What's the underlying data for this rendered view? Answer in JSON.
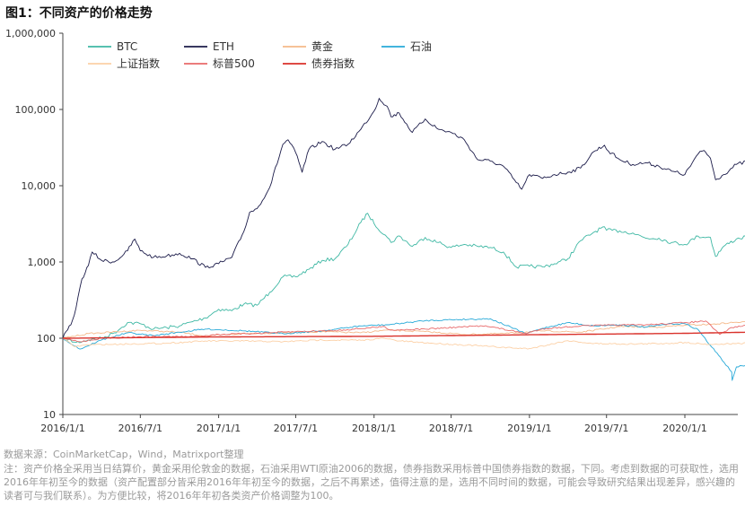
{
  "title": "图1：不同资产的价格走势",
  "source": "数据来源：CoinMarketCap，Wind，Matrixport整理",
  "note": "注：资产价格全采用当日结算价，黄金采用伦敦金的数据，石油采用WTI原油2006的数据，债券指数采用标普中国债券指数的数据，下同。考虑到数据的可获取性，选用2016年年初至今的数据（资产配置部分皆采用2016年年初至今的数据，之后不再累述，值得注意的是，选用不同时间的数据，可能会导致研究结果出现差异，感兴趣的读者可与我们联系）。为方便比较，将2016年年初各类资产价格调整为100。",
  "chart_data": {
    "type": "line",
    "y_scale": "log",
    "ylim": [
      10,
      1000000
    ],
    "ytick_labels": [
      "10",
      "100",
      "1,000",
      "10,000",
      "100,000",
      "1,000,000"
    ],
    "ytick_values": [
      10,
      100,
      1000,
      10000,
      100000,
      1000000
    ],
    "x_start": "2016/1/1",
    "x_end": "2020/6/1",
    "xtick_labels": [
      "2016/1/1",
      "2016/7/1",
      "2017/1/1",
      "2017/7/1",
      "2018/1/1",
      "2018/7/1",
      "2019/1/1",
      "2019/7/1",
      "2020/1/1"
    ],
    "grid": false,
    "legend_position": "top-left",
    "series": [
      {
        "name": "BTC",
        "color": "#3fb8a4",
        "width": 0.9,
        "points": [
          [
            "2016/1/1",
            100
          ],
          [
            "2016/2/1",
            88
          ],
          [
            "2016/3/1",
            95
          ],
          [
            "2016/4/1",
            100
          ],
          [
            "2016/5/1",
            118
          ],
          [
            "2016/6/1",
            160
          ],
          [
            "2016/7/1",
            155
          ],
          [
            "2016/8/1",
            132
          ],
          [
            "2016/9/1",
            138
          ],
          [
            "2016/10/1",
            145
          ],
          [
            "2016/11/1",
            165
          ],
          [
            "2016/12/1",
            185
          ],
          [
            "2017/1/1",
            240
          ],
          [
            "2017/2/1",
            230
          ],
          [
            "2017/3/1",
            280
          ],
          [
            "2017/4/1",
            270
          ],
          [
            "2017/5/1",
            400
          ],
          [
            "2017/6/1",
            640
          ],
          [
            "2017/7/1",
            640
          ],
          [
            "2017/8/1",
            800
          ],
          [
            "2017/9/1",
            1050
          ],
          [
            "2017/10/1",
            1100
          ],
          [
            "2017/11/1",
            1700
          ],
          [
            "2017/12/1",
            3300
          ],
          [
            "2017/12/17",
            4350
          ],
          [
            "2018/1/1",
            3200
          ],
          [
            "2018/2/1",
            2100
          ],
          [
            "2018/2/10",
            1800
          ],
          [
            "2018/3/1",
            2200
          ],
          [
            "2018/4/1",
            1600
          ],
          [
            "2018/5/1",
            2100
          ],
          [
            "2018/6/1",
            1800
          ],
          [
            "2018/7/1",
            1550
          ],
          [
            "2018/8/1",
            1700
          ],
          [
            "2018/9/1",
            1600
          ],
          [
            "2018/10/1",
            1550
          ],
          [
            "2018/11/1",
            1350
          ],
          [
            "2018/12/1",
            860
          ],
          [
            "2019/1/1",
            880
          ],
          [
            "2019/2/1",
            860
          ],
          [
            "2019/3/1",
            950
          ],
          [
            "2019/4/1",
            1100
          ],
          [
            "2019/5/1",
            1900
          ],
          [
            "2019/6/1",
            2450
          ],
          [
            "2019/6/26",
            2900
          ],
          [
            "2019/7/1",
            2600
          ],
          [
            "2019/8/1",
            2550
          ],
          [
            "2019/9/1",
            2400
          ],
          [
            "2019/10/1",
            2050
          ],
          [
            "2019/11/1",
            2050
          ],
          [
            "2019/12/1",
            1800
          ],
          [
            "2020/1/1",
            1700
          ],
          [
            "2020/2/1",
            2180
          ],
          [
            "2020/3/1",
            2100
          ],
          [
            "2020/3/13",
            1180
          ],
          [
            "2020/4/1",
            1600
          ],
          [
            "2020/5/1",
            2000
          ],
          [
            "2020/6/1",
            2200
          ]
        ]
      },
      {
        "name": "ETH",
        "color": "#1c1c4a",
        "width": 0.9,
        "points": [
          [
            "2016/1/1",
            100
          ],
          [
            "2016/1/20",
            150
          ],
          [
            "2016/2/1",
            250
          ],
          [
            "2016/2/15",
            600
          ],
          [
            "2016/3/1",
            900
          ],
          [
            "2016/3/10",
            1350
          ],
          [
            "2016/4/1",
            1050
          ],
          [
            "2016/5/1",
            1000
          ],
          [
            "2016/6/1",
            1400
          ],
          [
            "2016/6/18",
            2000
          ],
          [
            "2016/7/1",
            1400
          ],
          [
            "2016/8/1",
            1150
          ],
          [
            "2016/9/1",
            1200
          ],
          [
            "2016/10/1",
            1300
          ],
          [
            "2016/11/1",
            1100
          ],
          [
            "2016/12/1",
            850
          ],
          [
            "2017/1/1",
            950
          ],
          [
            "2017/2/1",
            1150
          ],
          [
            "2017/3/1",
            2500
          ],
          [
            "2017/3/15",
            4500
          ],
          [
            "2017/4/1",
            5000
          ],
          [
            "2017/5/1",
            9500
          ],
          [
            "2017/6/1",
            35000
          ],
          [
            "2017/6/13",
            40000
          ],
          [
            "2017/7/1",
            27000
          ],
          [
            "2017/7/16",
            15000
          ],
          [
            "2017/8/1",
            30000
          ],
          [
            "2017/9/1",
            38000
          ],
          [
            "2017/10/1",
            30000
          ],
          [
            "2017/11/1",
            35000
          ],
          [
            "2017/12/1",
            55000
          ],
          [
            "2018/1/1",
            95000
          ],
          [
            "2018/1/13",
            140000
          ],
          [
            "2018/2/1",
            110000
          ],
          [
            "2018/2/10",
            80000
          ],
          [
            "2018/3/1",
            90000
          ],
          [
            "2018/4/1",
            50000
          ],
          [
            "2018/5/1",
            75000
          ],
          [
            "2018/6/1",
            55000
          ],
          [
            "2018/7/1",
            50000
          ],
          [
            "2018/8/1",
            40000
          ],
          [
            "2018/9/1",
            22000
          ],
          [
            "2018/10/1",
            21000
          ],
          [
            "2018/11/1",
            18000
          ],
          [
            "2018/12/1",
            11000
          ],
          [
            "2018/12/14",
            9000
          ],
          [
            "2019/1/1",
            14000
          ],
          [
            "2019/2/1",
            12500
          ],
          [
            "2019/3/1",
            14000
          ],
          [
            "2019/4/1",
            15000
          ],
          [
            "2019/5/1",
            17000
          ],
          [
            "2019/6/1",
            28000
          ],
          [
            "2019/6/26",
            34000
          ],
          [
            "2019/7/1",
            30000
          ],
          [
            "2019/8/1",
            22000
          ],
          [
            "2019/9/1",
            19000
          ],
          [
            "2019/10/1",
            20000
          ],
          [
            "2019/11/1",
            18000
          ],
          [
            "2019/12/1",
            15500
          ],
          [
            "2020/1/1",
            14000
          ],
          [
            "2020/2/1",
            26000
          ],
          [
            "2020/2/15",
            29000
          ],
          [
            "2020/3/1",
            23000
          ],
          [
            "2020/3/13",
            12000
          ],
          [
            "2020/4/1",
            14000
          ],
          [
            "2020/5/1",
            19000
          ],
          [
            "2020/6/1",
            21000
          ]
        ]
      },
      {
        "name": "黄金",
        "color": "#f5b98a",
        "width": 0.9,
        "points": [
          [
            "2016/1/1",
            100
          ],
          [
            "2016/3/1",
            115
          ],
          [
            "2016/7/1",
            127
          ],
          [
            "2016/10/1",
            120
          ],
          [
            "2016/12/1",
            107
          ],
          [
            "2017/3/1",
            115
          ],
          [
            "2017/6/1",
            118
          ],
          [
            "2017/9/1",
            122
          ],
          [
            "2017/12/1",
            118
          ],
          [
            "2018/2/1",
            128
          ],
          [
            "2018/5/1",
            122
          ],
          [
            "2018/8/1",
            112
          ],
          [
            "2018/11/1",
            115
          ],
          [
            "2019/2/1",
            125
          ],
          [
            "2019/5/1",
            120
          ],
          [
            "2019/8/1",
            142
          ],
          [
            "2019/11/1",
            140
          ],
          [
            "2020/1/1",
            148
          ],
          [
            "2020/3/1",
            152
          ],
          [
            "2020/5/1",
            162
          ],
          [
            "2020/6/1",
            163
          ]
        ]
      },
      {
        "name": "石油",
        "color": "#27a9d8",
        "width": 0.9,
        "points": [
          [
            "2016/1/1",
            100
          ],
          [
            "2016/2/10",
            72
          ],
          [
            "2016/4/1",
            95
          ],
          [
            "2016/6/1",
            118
          ],
          [
            "2016/8/1",
            108
          ],
          [
            "2016/10/1",
            120
          ],
          [
            "2016/12/1",
            132
          ],
          [
            "2017/3/1",
            125
          ],
          [
            "2017/6/1",
            115
          ],
          [
            "2017/9/1",
            125
          ],
          [
            "2017/12/1",
            145
          ],
          [
            "2018/2/1",
            150
          ],
          [
            "2018/5/1",
            170
          ],
          [
            "2018/7/1",
            175
          ],
          [
            "2018/10/1",
            180
          ],
          [
            "2018/12/24",
            115
          ],
          [
            "2019/2/1",
            135
          ],
          [
            "2019/4/1",
            160
          ],
          [
            "2019/6/1",
            145
          ],
          [
            "2019/8/1",
            150
          ],
          [
            "2019/10/1",
            140
          ],
          [
            "2019/12/1",
            155
          ],
          [
            "2020/1/1",
            155
          ],
          [
            "2020/2/1",
            130
          ],
          [
            "2020/3/1",
            80
          ],
          [
            "2020/3/20",
            60
          ],
          [
            "2020/4/20",
            36
          ],
          [
            "2020/4/21",
            28
          ],
          [
            "2020/5/1",
            42
          ],
          [
            "2020/6/1",
            45
          ]
        ]
      },
      {
        "name": "上证指数",
        "color": "#fcd0a6",
        "width": 0.9,
        "points": [
          [
            "2016/1/1",
            100
          ],
          [
            "2016/1/28",
            78
          ],
          [
            "2016/3/1",
            82
          ],
          [
            "2016/6/1",
            84
          ],
          [
            "2016/9/1",
            86
          ],
          [
            "2016/12/1",
            92
          ],
          [
            "2017/3/1",
            92
          ],
          [
            "2017/6/1",
            90
          ],
          [
            "2017/9/1",
            95
          ],
          [
            "2017/12/1",
            94
          ],
          [
            "2018/1/25",
            100
          ],
          [
            "2018/3/1",
            92
          ],
          [
            "2018/6/1",
            85
          ],
          [
            "2018/9/1",
            80
          ],
          [
            "2018/12/1",
            74
          ],
          [
            "2019/1/1",
            73
          ],
          [
            "2019/4/1",
            93
          ],
          [
            "2019/6/1",
            85
          ],
          [
            "2019/9/1",
            84
          ],
          [
            "2019/12/1",
            86
          ],
          [
            "2020/1/1",
            88
          ],
          [
            "2020/3/1",
            83
          ],
          [
            "2020/5/1",
            85
          ],
          [
            "2020/6/1",
            86
          ]
        ]
      },
      {
        "name": "标普500",
        "color": "#e8696a",
        "width": 0.9,
        "points": [
          [
            "2016/1/1",
            100
          ],
          [
            "2016/2/11",
            90
          ],
          [
            "2016/4/1",
            100
          ],
          [
            "2016/7/1",
            105
          ],
          [
            "2016/11/1",
            105
          ],
          [
            "2017/1/1",
            112
          ],
          [
            "2017/4/1",
            116
          ],
          [
            "2017/7/1",
            122
          ],
          [
            "2017/10/1",
            126
          ],
          [
            "2018/1/26",
            142
          ],
          [
            "2018/2/8",
            128
          ],
          [
            "2018/5/1",
            132
          ],
          [
            "2018/9/20",
            146
          ],
          [
            "2018/12/24",
            115
          ],
          [
            "2019/2/1",
            133
          ],
          [
            "2019/5/1",
            145
          ],
          [
            "2019/7/1",
            148
          ],
          [
            "2019/10/1",
            150
          ],
          [
            "2020/1/1",
            160
          ],
          [
            "2020/2/19",
            168
          ],
          [
            "2020/3/23",
            112
          ],
          [
            "2020/4/20",
            138
          ],
          [
            "2020/6/1",
            150
          ]
        ]
      },
      {
        "name": "债券指数",
        "color": "#d9312a",
        "width": 1.4,
        "points": [
          [
            "2016/1/1",
            100
          ],
          [
            "2017/1/1",
            104
          ],
          [
            "2018/1/1",
            106
          ],
          [
            "2019/1/1",
            111
          ],
          [
            "2020/1/1",
            116
          ],
          [
            "2020/6/1",
            120
          ]
        ]
      }
    ]
  }
}
